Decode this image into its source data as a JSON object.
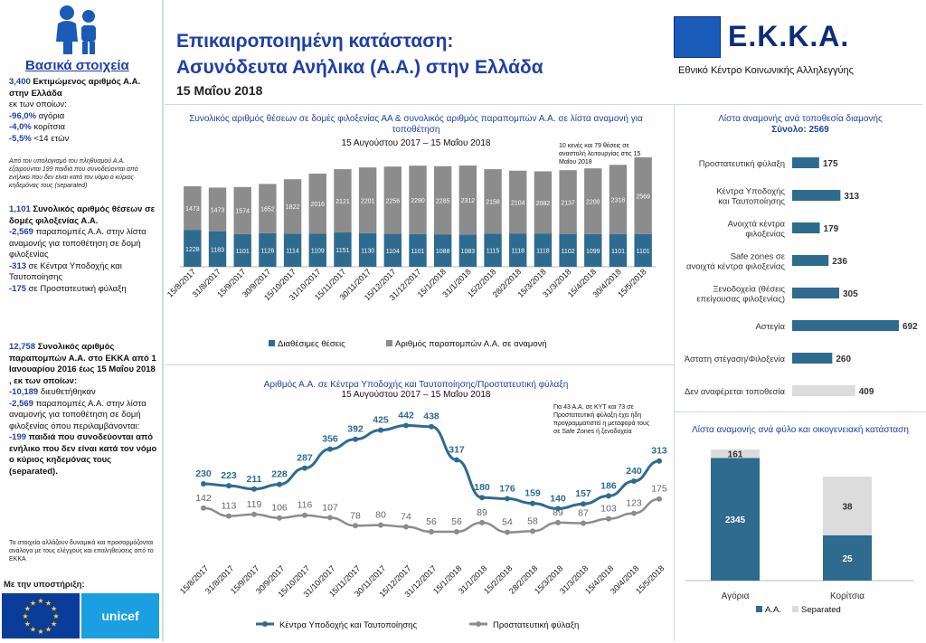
{
  "header": {
    "title_line1": "Επικαιροποιημένη κατάσταση:",
    "title_line2": "Ασυνόδευτα Ανήλικα (Α.Α.) στην Ελλάδα",
    "date": "15 Μαΐου 2018",
    "logo_text": "Ε.Κ.Κ.Α.",
    "logo_subtitle": "Εθνικό Κέντρο Κοινωνικής Αλληλεγγύης"
  },
  "sidebar": {
    "title": "Βασικά στοιχεία",
    "b1_num": "3,400",
    "b1_text": " Εκτιμώμενος αριθμός Α.Α. στην Ελλάδα",
    "b1_of": "εκ των οποίων:",
    "b1_l1_num": "-96,0%",
    "b1_l1_txt": " αγόρια",
    "b1_l2_num": "-4,0%",
    "b1_l2_txt": " κορίτσια",
    "b1_l3_num": "-5,5%",
    "b1_l3_txt": " <14 ετών",
    "note1": "Από τον υπολογισμό του πληθυσμού Α.Α. εξαιρούνται 199 παιδιά που συνοδεύονται από ενήλικο που δεν είναι κατά τον νόμο ο κύριος κηδεμόνας τους (separated)",
    "b2_num": "1,101",
    "b2_text": " Συνολικός αριθμός θέσεων σε δομές φιλοξενίας Α.Α.",
    "b2_l1_num": "-2,569",
    "b2_l1_txt": " παραπομπές Α.Α. στην λίστα αναμονής για τοποθέτηση σε δομή φιλοξενίας",
    "b2_l2_num": "-313",
    "b2_l2_txt": " σε Κέντρα Υποδοχής και Ταυτοποίησης",
    "b2_l3_num": "-175",
    "b2_l3_txt": " σε Προστατευτική φύλαξη",
    "b3_num": "12,758",
    "b3_text": " Συνολικός αριθμός παραπομπών Α.Α. στο ΕΚΚΑ από 1 Ιανουαρίου 2016 έως 15 Μαΐου 2018 , εκ των οποίων:",
    "b3_l1_num": "-10,189",
    "b3_l1_txt": " διευθετήθηκαν",
    "b3_l2_num": "-2,569",
    "b3_l2_txt": " παραπομπές Α.Α. στην λίστα αναμονής για τοποθέτηση σε δομή φιλοξενίας όπου περιλαμβάνονται:",
    "b3_l3_num": "-199",
    "b3_l3_txt": " παιδιά που συνοδεύονται από ενήλικο που δεν είναι κατά τον νόμο ο κύριος κηδεμόνας τους (separated).",
    "note2": "Τα στοιχεία αλλάζουν δυναμικά και προσαρμόζονται ανάλογα με τους ελέγχους και επαληθεύσεις από το ΕΚΚΑ",
    "support": "Με την υποστήριξη:",
    "unicef": "unicef"
  },
  "colors": {
    "blue": "#2e6b8f",
    "gray": "#8c8c8c",
    "light": "#dcdcdc",
    "title_blue": "#1f3fa6"
  },
  "chart_data": [
    {
      "type": "bar",
      "title": "Συνολικός αριθμός θέσεων σε δομές φιλοξενίας ΑΑ & συνολικός αριθμός παραπομπών Α.Α. σε λίστα αναμονή για τοποθέτηση",
      "subtitle": "15 Αυγούστου 2017 – 15 Μαΐου 2018",
      "note": "10 κενές και 79 θέσεις σε αναστολή λειτουργίας στις 15 Μαΐου 2018",
      "stacked": true,
      "categories": [
        "15/8/2017",
        "31/8/2017",
        "15/9/2017",
        "30/9/2017",
        "15/10/2017",
        "31/10/2017",
        "15/11/2017",
        "30/11/2017",
        "15/12/2017",
        "31/12/2017",
        "15/1/2018",
        "31/1/2018",
        "15/2/2018",
        "28/2/2018",
        "15/3/2018",
        "31/3/2018",
        "15/4/2018",
        "30/4/2018",
        "15/5/2018"
      ],
      "series": [
        {
          "name": "Διαθέσιμες θέσεις",
          "values": [
            1228,
            1183,
            1101,
            1126,
            1114,
            1109,
            1151,
            1130,
            1104,
            1101,
            1088,
            1083,
            1115,
            1118,
            1118,
            1102,
            1099,
            1101,
            1101
          ]
        },
        {
          "name": "Αριθμός παραπομπών Α.Α. σε αναμονή",
          "values": [
            1473,
            1473,
            1574,
            1652,
            1822,
            2016,
            2121,
            2201,
            2256,
            2290,
            2285,
            2312,
            2158,
            2104,
            2082,
            2137,
            2200,
            2318,
            2569
          ]
        }
      ]
    },
    {
      "type": "line",
      "title": "Αριθμός Α.Α. σε Κέντρα Υποδοχής και Ταυτοποίησης/Προστατευτική φύλαξη",
      "subtitle": "15 Αυγούστου 2017 – 15 Μαΐου 2018",
      "note": "Για 43 Α.Α. σε ΚΥΤ και 73 σε Προστατευτική φύλαξη έχει ήδη προγραμματιστεί η μεταφορά τους σε Safe Zones ή ξενοδοχεία",
      "categories": [
        "15/8/2017",
        "31/8/2017",
        "15/9/2017",
        "30/9/2017",
        "15/10/2017",
        "31/10/2017",
        "15/11/2017",
        "30/11/2017",
        "15/12/2017",
        "31/12/2017",
        "15/1/2018",
        "31/1/2018",
        "15/2/2018",
        "28/2/2018",
        "15/3/2018",
        "31/3/2018",
        "15/4/2018",
        "30/4/2018",
        "15/5/2018"
      ],
      "series": [
        {
          "name": "Κέντρα Υποδοχής και Ταυτοποίησης",
          "values": [
            230,
            223,
            211,
            228,
            287,
            356,
            392,
            425,
            442,
            438,
            317,
            180,
            176,
            159,
            140,
            157,
            186,
            240,
            313
          ]
        },
        {
          "name": "Προστατευτική φύλαξη",
          "values": [
            142,
            113,
            119,
            106,
            116,
            107,
            78,
            80,
            74,
            56,
            56,
            89,
            54,
            58,
            89,
            87,
            103,
            123,
            175
          ]
        }
      ]
    },
    {
      "type": "bar",
      "orientation": "horizontal",
      "title": "Λίστα αναμονής ανά τοποθεσία διαμονής",
      "subtitle": "Σύνολο: 2569",
      "categories": [
        "Προστατευτική φύλαξη",
        "Κέντρα Υποδοχής και Ταυτοποίησης",
        "Ανοιχτά κέντρα φιλοξενίας",
        "Safe zones σε ανοιχτά κέντρα φιλοξενίας",
        "Ξενοδοχεία (θέσεις επείγουσας φιλοξενίας)",
        "Αστεγία",
        "Άστατη στέγαση/Φιλοξενία",
        "Δεν αναφέρεται τοποθεσία"
      ],
      "values": [
        175,
        313,
        179,
        236,
        305,
        692,
        260,
        409
      ]
    },
    {
      "type": "bar",
      "stacked": true,
      "title": "Λίστα αναμονής ανά φύλο και οικογενειακή κατάσταση",
      "categories": [
        "Αγόρια",
        "Κορίτσια"
      ],
      "series": [
        {
          "name": "Α.Α.",
          "values": [
            2345,
            25
          ]
        },
        {
          "name": "Separated",
          "values": [
            161,
            38
          ]
        }
      ]
    }
  ]
}
